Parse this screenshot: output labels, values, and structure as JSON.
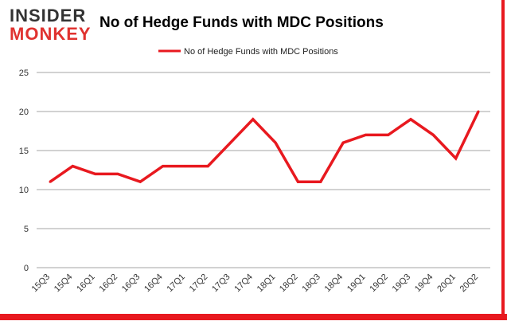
{
  "logo": {
    "line1": "INSIDER",
    "line2": "MONKEY"
  },
  "colors": {
    "series": "#e8191f",
    "border": "#e8191f",
    "grid": "#a6a6a6"
  },
  "chart_data": {
    "type": "line",
    "title": "No of Hedge Funds with MDC Positions",
    "xlabel": "",
    "ylabel": "",
    "legend": "top-center",
    "grid": true,
    "ylim": [
      0,
      25
    ],
    "yticks": [
      0,
      5,
      10,
      15,
      20,
      25
    ],
    "categories": [
      "15Q3",
      "15Q4",
      "16Q1",
      "16Q2",
      "16Q3",
      "16Q4",
      "17Q1",
      "17Q2",
      "17Q3",
      "17Q4",
      "18Q1",
      "18Q2",
      "18Q3",
      "18Q4",
      "19Q1",
      "19Q2",
      "19Q3",
      "19Q4",
      "20Q1",
      "20Q2"
    ],
    "series": [
      {
        "name": "No of Hedge Funds with MDC Positions",
        "values": [
          11,
          13,
          12,
          12,
          11,
          13,
          13,
          13,
          16,
          19,
          16,
          11,
          11,
          16,
          17,
          17,
          19,
          17,
          14,
          20
        ]
      }
    ]
  }
}
